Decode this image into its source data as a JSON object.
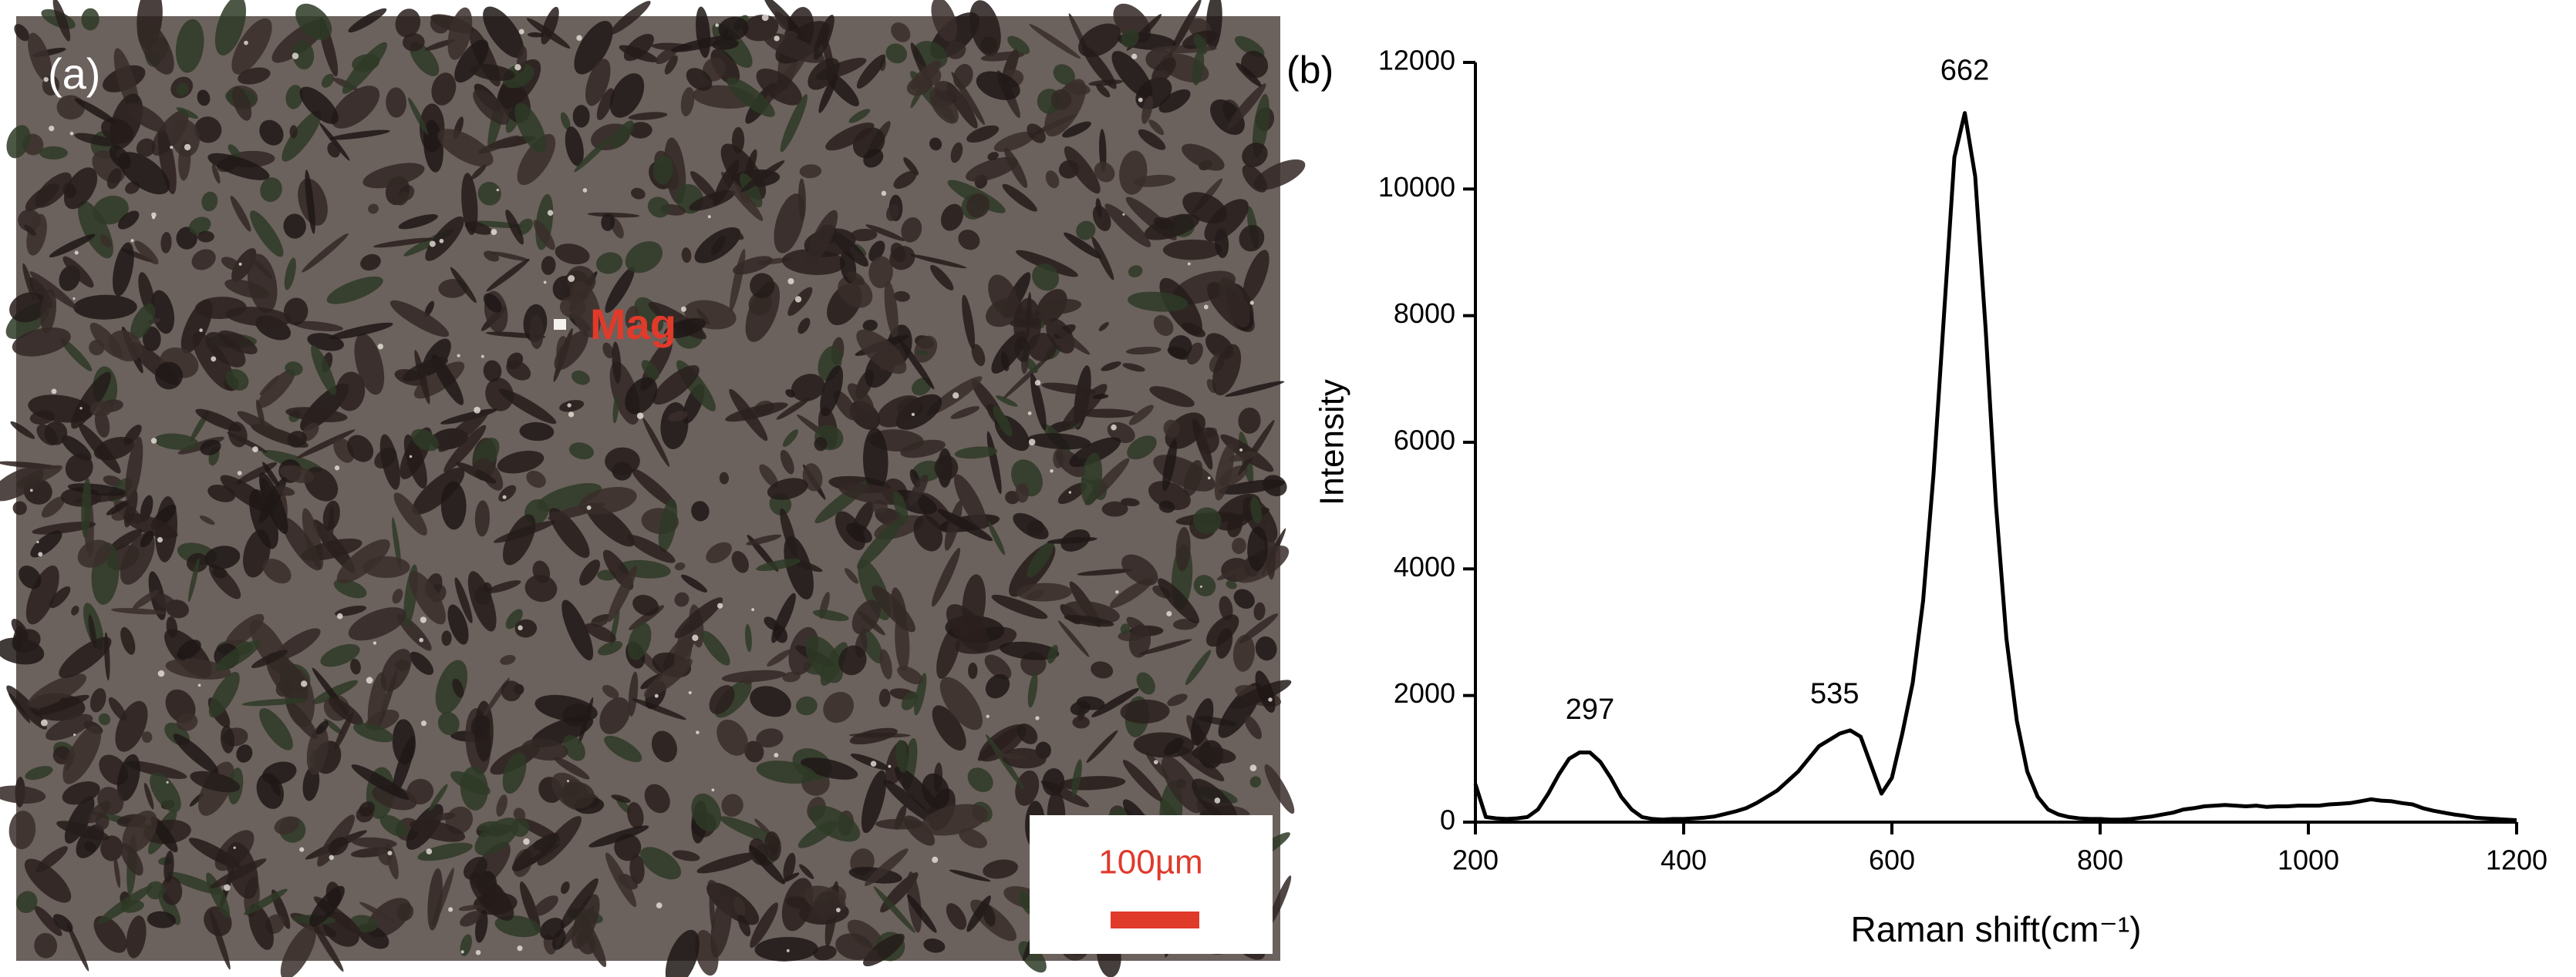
{
  "image_panel": {
    "label": "(a)",
    "annotation": "Mag",
    "scale_bar": "100µm"
  },
  "chart_data": {
    "type": "line",
    "panel_label": "(b)",
    "x_label": "Raman shift(cm⁻¹)",
    "y_label": "Intensity",
    "color": "#000000",
    "xlim": [
      200,
      1200
    ],
    "xticks": [
      200,
      400,
      600,
      800,
      1000,
      1200
    ],
    "ylim": [
      0,
      12000
    ],
    "yticks": [
      0,
      2000,
      4000,
      6000,
      8000,
      10000,
      12000
    ],
    "annotations": [
      {
        "text": "297",
        "x": 310,
        "y": 1750
      },
      {
        "text": "535",
        "x": 545,
        "y": 2000
      },
      {
        "text": "662",
        "x": 670,
        "y": 11850
      }
    ],
    "x": [
      200,
      210,
      220,
      230,
      240,
      250,
      260,
      270,
      280,
      290,
      300,
      310,
      320,
      330,
      340,
      350,
      360,
      370,
      380,
      390,
      400,
      410,
      420,
      430,
      440,
      450,
      460,
      470,
      480,
      490,
      500,
      510,
      520,
      530,
      540,
      550,
      560,
      570,
      580,
      590,
      600,
      610,
      620,
      630,
      640,
      650,
      660,
      670,
      680,
      690,
      700,
      710,
      720,
      730,
      740,
      750,
      760,
      770,
      780,
      790,
      800,
      810,
      820,
      830,
      840,
      850,
      860,
      870,
      880,
      890,
      900,
      910,
      920,
      930,
      940,
      950,
      960,
      970,
      980,
      990,
      1000,
      1010,
      1020,
      1030,
      1040,
      1050,
      1060,
      1070,
      1080,
      1090,
      1100,
      1110,
      1120,
      1130,
      1140,
      1150,
      1160,
      1170,
      1180,
      1190,
      1200
    ],
    "values": [
      600,
      80,
      60,
      50,
      60,
      80,
      200,
      450,
      750,
      1000,
      1100,
      1100,
      950,
      700,
      400,
      200,
      80,
      50,
      40,
      50,
      50,
      60,
      70,
      90,
      130,
      170,
      220,
      300,
      400,
      500,
      650,
      800,
      1000,
      1200,
      1300,
      1400,
      1450,
      1350,
      900,
      450,
      700,
      1400,
      2200,
      3500,
      5500,
      8000,
      10500,
      11200,
      10200,
      7800,
      5000,
      2900,
      1600,
      800,
      400,
      200,
      120,
      80,
      60,
      50,
      50,
      40,
      40,
      50,
      70,
      90,
      120,
      150,
      200,
      220,
      250,
      260,
      270,
      260,
      250,
      260,
      240,
      250,
      250,
      260,
      260,
      260,
      280,
      290,
      300,
      330,
      360,
      340,
      330,
      300,
      280,
      220,
      180,
      150,
      120,
      100,
      70,
      60,
      50,
      40,
      30
    ]
  }
}
